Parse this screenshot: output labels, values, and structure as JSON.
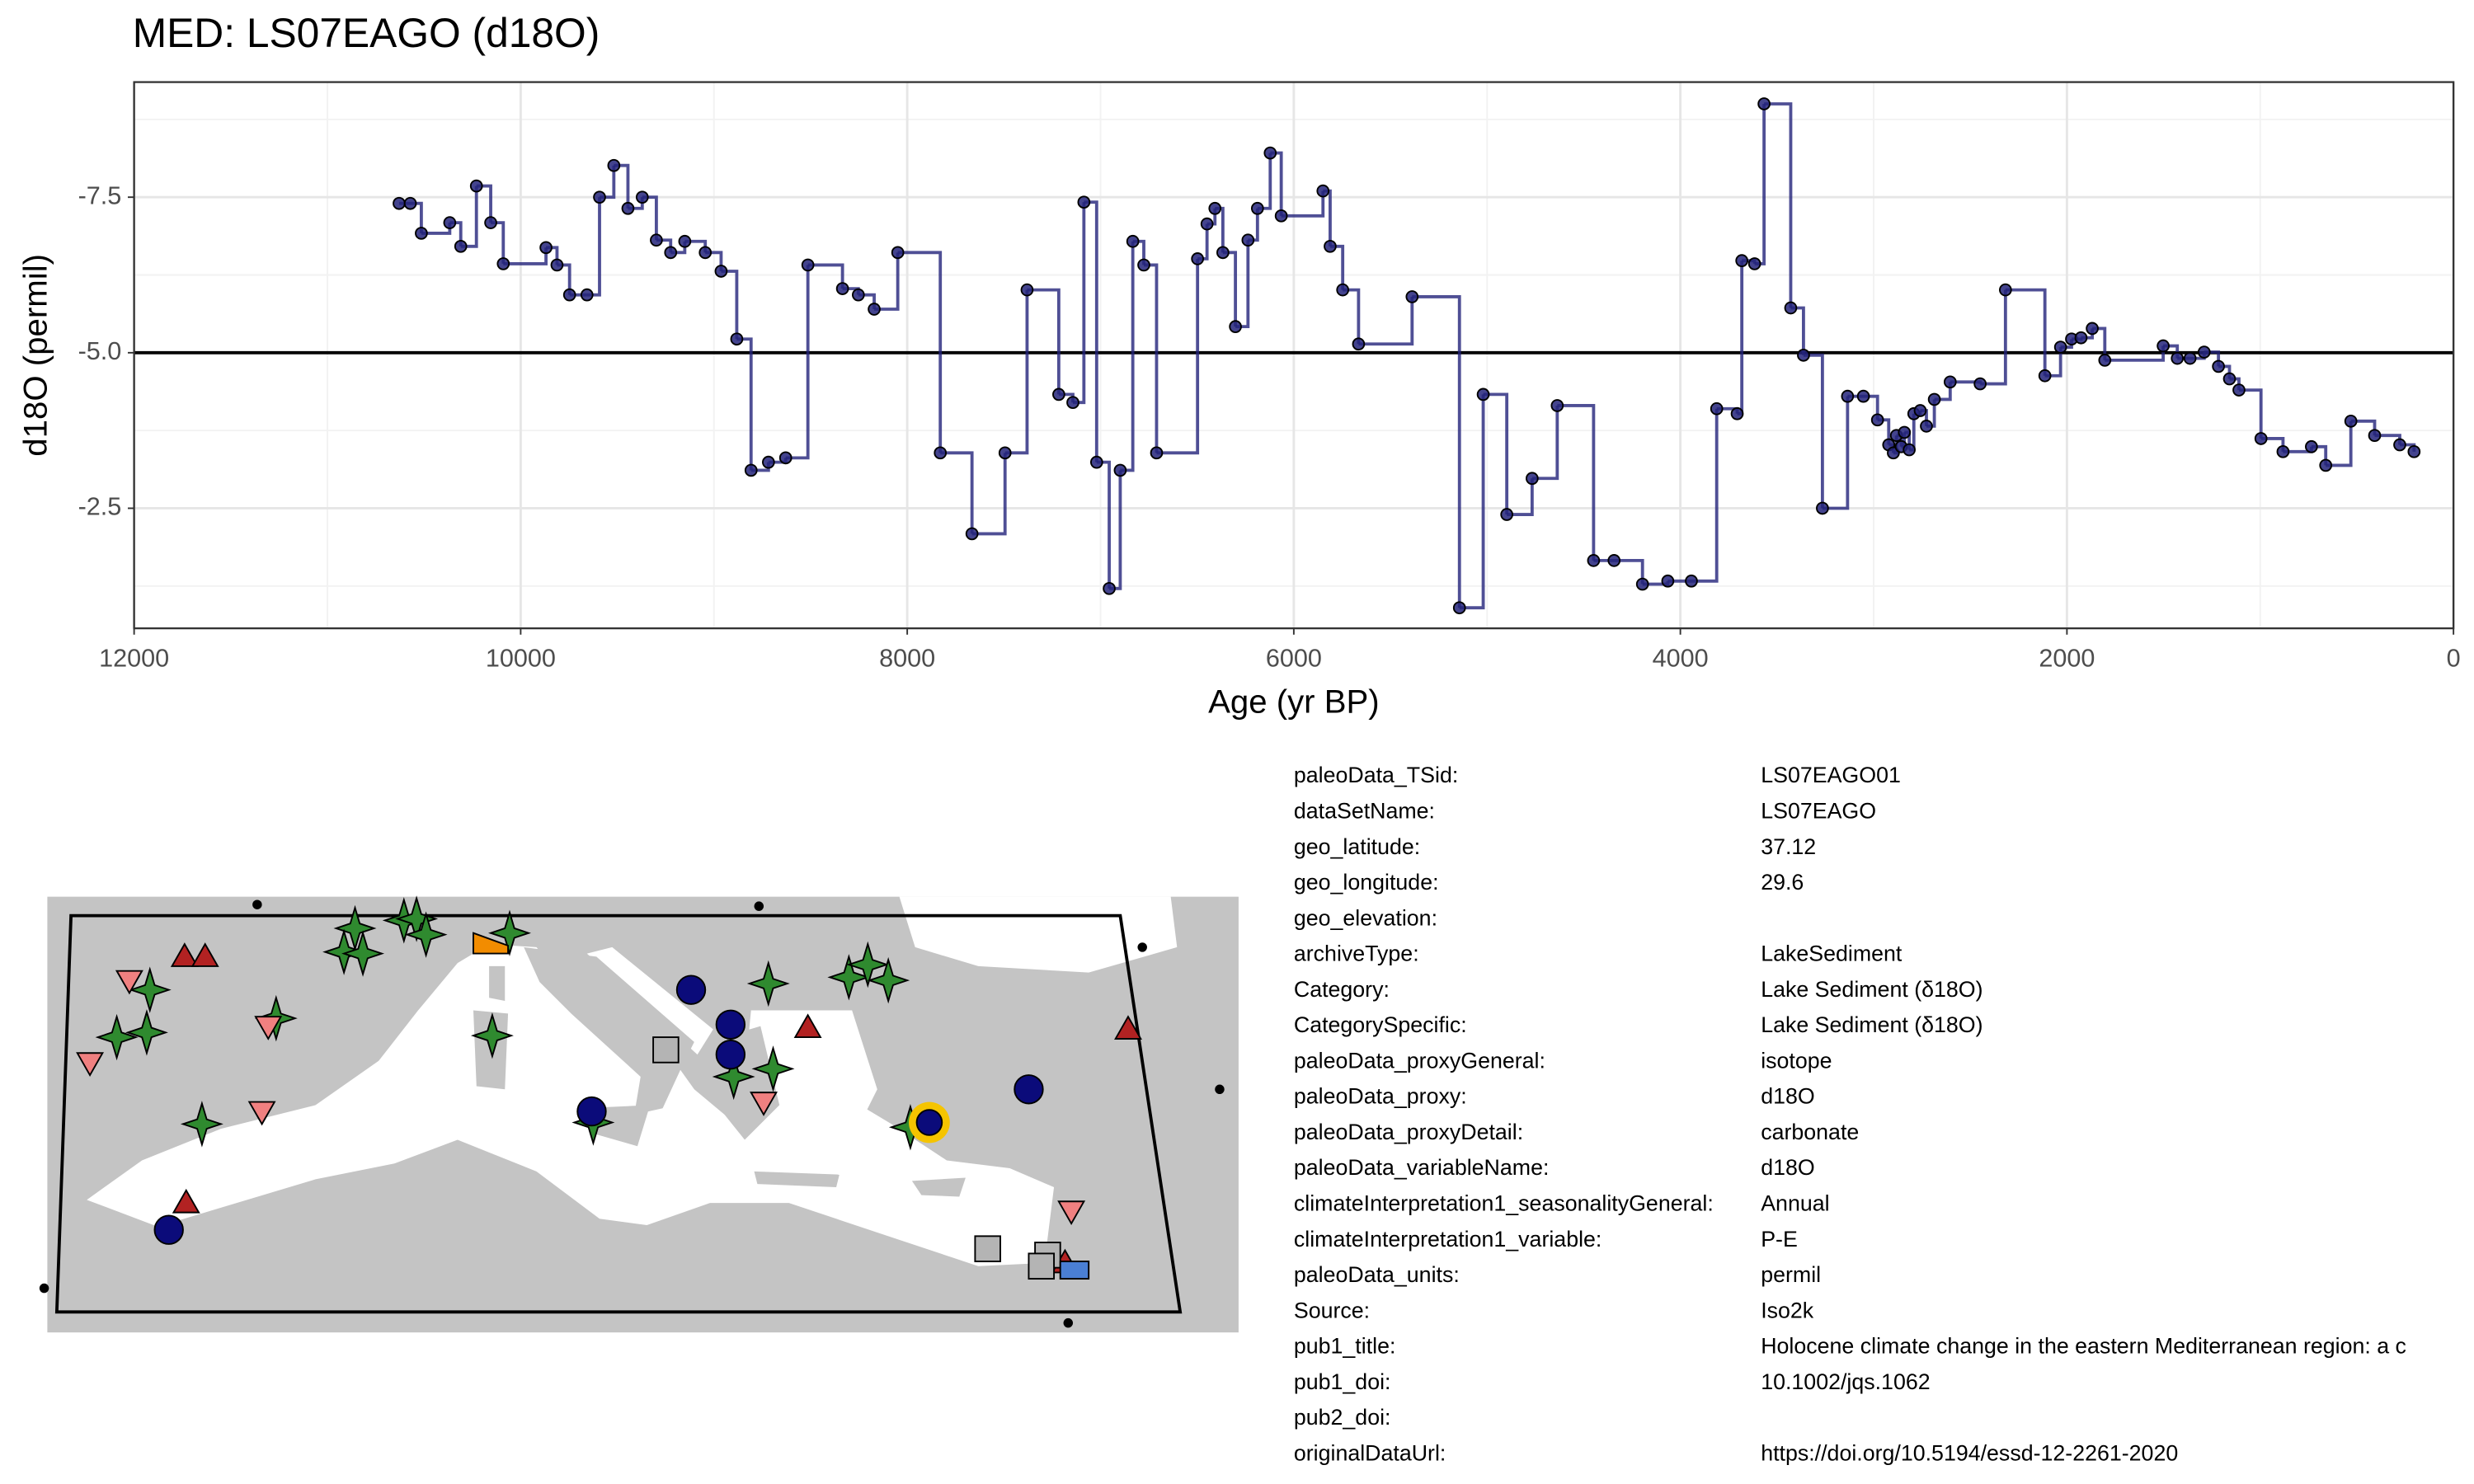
{
  "chart_data": {
    "type": "line",
    "step": true,
    "title": "MED: LS07EAGO (d18O)",
    "x_label": "Age (yr BP)",
    "y_label": "d18O (permil)",
    "xlim": [
      12000,
      0
    ],
    "ylim": [
      -0.57,
      -9.35
    ],
    "xticks": [
      12000,
      10000,
      8000,
      6000,
      4000,
      2000,
      0
    ],
    "yticks": [
      -7.5,
      {
        "value": -5,
        "label": "-5.0"
      },
      -2.5
    ],
    "grid": true,
    "hline": -5,
    "x": [
      10629,
      10571,
      10514,
      10367,
      10310,
      10229,
      10155,
      10090,
      9869,
      9812,
      9747,
      9657,
      9592,
      9518,
      9445,
      9371,
      9298,
      9224,
      9151,
      9045,
      8963,
      8882,
      8808,
      8718,
      8629,
      8514,
      8335,
      8253,
      8171,
      8049,
      7829,
      7665,
      7494,
      7380,
      7216,
      7143,
      7086,
      7020,
      6955,
      6898,
      6833,
      6776,
      6710,
      6498,
      6449,
      6408,
      6367,
      6302,
      6237,
      6188,
      6122,
      6065,
      5849,
      5812,
      5747,
      5665,
      5388,
      5143,
      5020,
      4898,
      4767,
      4637,
      4449,
      4343,
      4196,
      4065,
      3943,
      3812,
      3706,
      3682,
      3616,
      3567,
      3429,
      3363,
      3265,
      3135,
      3053,
      2980,
      2922,
      2898,
      2882,
      2857,
      2841,
      2816,
      2792,
      2759,
      2727,
      2686,
      2604,
      2449,
      2318,
      2114,
      2033,
      1976,
      1927,
      1869,
      1804,
      1502,
      1429,
      1363,
      1290,
      1216,
      1159,
      1110,
      996,
      882,
      735,
      661,
      531,
      408,
      278,
      204
    ],
    "series": [
      {
        "name": "d18O",
        "color": "#23237a",
        "values": [
          -7.4,
          -7.4,
          -6.92,
          -7.09,
          -6.71,
          -7.68,
          -7.09,
          -6.43,
          -6.69,
          -6.41,
          -5.93,
          -5.93,
          -7.5,
          -8.01,
          -7.32,
          -7.5,
          -6.81,
          -6.61,
          -6.79,
          -6.61,
          -6.31,
          -5.22,
          -3.11,
          -3.24,
          -3.31,
          -6.41,
          -6.03,
          -5.93,
          -5.7,
          -6.61,
          -3.39,
          -2.09,
          -3.39,
          -6.01,
          -4.33,
          -4.2,
          -7.42,
          -3.24,
          -1.21,
          -3.11,
          -6.79,
          -6.41,
          -3.39,
          -6.51,
          -7.07,
          -7.32,
          -6.61,
          -5.42,
          -6.81,
          -7.32,
          -8.21,
          -7.2,
          -7.6,
          -6.71,
          -6.01,
          -5.14,
          -5.9,
          -0.9,
          -4.33,
          -2.4,
          -2.98,
          -4.15,
          -1.66,
          -1.66,
          -1.28,
          -1.33,
          -1.33,
          -4.1,
          -4.02,
          -6.48,
          -6.43,
          -9.0,
          -5.72,
          -4.96,
          -2.5,
          -4.3,
          -4.3,
          -3.92,
          -3.52,
          -3.39,
          -3.67,
          -3.49,
          -3.72,
          -3.44,
          -4.02,
          -4.07,
          -3.82,
          -4.25,
          -4.53,
          -4.5,
          -6.01,
          -4.63,
          -5.09,
          -5.22,
          -5.24,
          -5.39,
          -4.88,
          -5.11,
          -4.91,
          -4.91,
          -5.01,
          -4.78,
          -4.58,
          -4.4,
          -3.62,
          -3.41,
          -3.49,
          -3.19,
          -3.9,
          -3.67,
          -3.52,
          -3.41
        ]
      }
    ]
  },
  "metadata": {
    "rows": [
      [
        "paleoData_TSid:",
        "LS07EAGO01"
      ],
      [
        "dataSetName:",
        "LS07EAGO"
      ],
      [
        "geo_latitude:",
        "37.12"
      ],
      [
        "geo_longitude:",
        "29.6"
      ],
      [
        "geo_elevation:"
      ],
      [
        "archiveType:",
        "LakeSediment"
      ],
      [
        "Category:",
        "Lake Sediment (δ18O)"
      ],
      [
        "CategorySpecific:",
        "Lake Sediment (δ18O)"
      ],
      [
        "paleoData_proxyGeneral:",
        "isotope"
      ],
      [
        "paleoData_proxy:",
        "d18O"
      ],
      [
        "paleoData_proxyDetail:",
        "carbonate"
      ],
      [
        "paleoData_variableName:",
        "d18O"
      ],
      [
        "climateInterpretation1_seasonalityGeneral:",
        "Annual"
      ],
      [
        "climateInterpretation1_variable:",
        "P-E"
      ],
      [
        "paleoData_units:",
        "permil"
      ],
      [
        "Source:",
        "Iso2k"
      ],
      [
        "pub1_title:",
        "Holocene climate change in the eastern Mediterranean region: a c"
      ],
      [
        "pub1_doi:",
        "10.1002/jqs.1062"
      ],
      [
        "pub2_doi:"
      ],
      [
        "originalDataUrl:",
        "https://doi.org/10.5194/essd-12-2261-2020"
      ]
    ]
  }
}
